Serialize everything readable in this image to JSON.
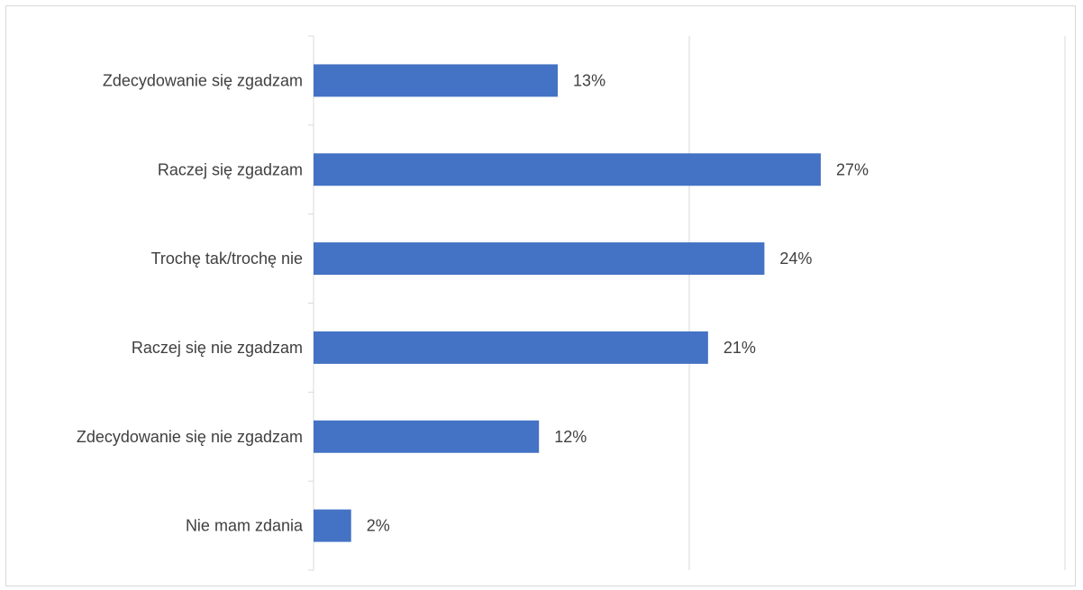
{
  "chart_data": {
    "type": "bar",
    "orientation": "horizontal",
    "categories": [
      "Zdecydowanie się zgadzam",
      "Raczej się zgadzam",
      "Trochę tak/trochę nie",
      "Raczej się nie zgadzam",
      "Zdecydowanie się nie zgadzam",
      "Nie mam zdania"
    ],
    "values": [
      13,
      27,
      24,
      21,
      12,
      2
    ],
    "data_labels": [
      "13%",
      "27%",
      "24%",
      "21%",
      "12%",
      "2%"
    ],
    "unit": "%",
    "xlim": [
      0,
      40
    ],
    "major_gridline_step": 20,
    "grid": true,
    "legend": "none",
    "bar_color": "#4472c4",
    "gridline_color": "#d9d9d9",
    "text_color": "#404040"
  }
}
